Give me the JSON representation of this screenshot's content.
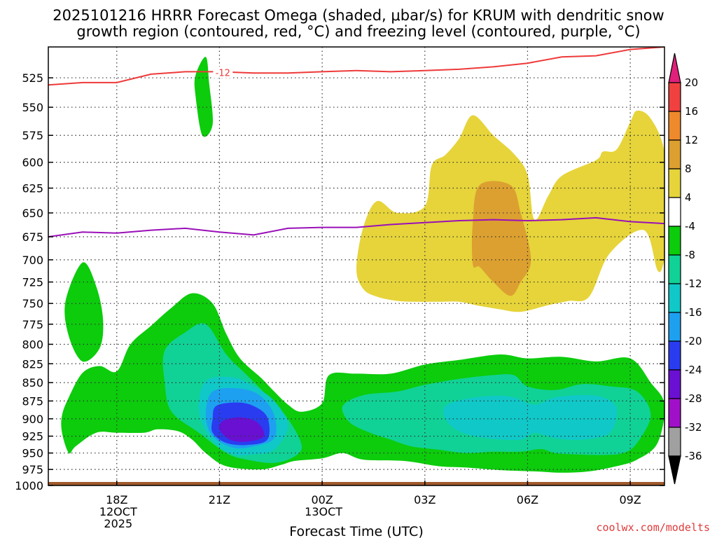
{
  "chart_data": {
    "type": "heatmap",
    "title_line1": "2025101216 HRRR Forecast Omega (shaded, μbar/s) for KRUM with dendritic snow",
    "title_line2": "growth region (contoured, red, °C) and freezing level (contoured, purple, °C)",
    "xlabel": "Forecast Time (UTC)",
    "ylabel": "",
    "credit": "coolwx.com/modelts",
    "x_range_hours": [
      16,
      34
    ],
    "y_range_hpa": [
      1000,
      500
    ],
    "y_ticks": [
      525,
      550,
      575,
      600,
      625,
      650,
      675,
      700,
      725,
      750,
      775,
      800,
      825,
      850,
      875,
      900,
      925,
      950,
      975,
      1000
    ],
    "x_ticks": [
      {
        "hour": 18,
        "lines": [
          "18Z",
          "12OCT",
          "2025"
        ]
      },
      {
        "hour": 21,
        "lines": [
          "21Z"
        ]
      },
      {
        "hour": 24,
        "lines": [
          "00Z",
          "13OCT"
        ]
      },
      {
        "hour": 27,
        "lines": [
          "03Z"
        ]
      },
      {
        "hour": 30,
        "lines": [
          "06Z"
        ]
      },
      {
        "hour": 33,
        "lines": [
          "09Z"
        ]
      }
    ],
    "colorbar": {
      "labels": [
        "20",
        "16",
        "12",
        "8",
        "4",
        "-4",
        "-8",
        "-12",
        "-16",
        "-20",
        "-24",
        "-28",
        "-32",
        "-36"
      ],
      "bins": [
        {
          "range": ">20",
          "color": "#e0207a"
        },
        {
          "range": "16 to 20",
          "color": "#f04040"
        },
        {
          "range": "12 to 16",
          "color": "#ee8a2c"
        },
        {
          "range": "8 to 12",
          "color": "#dca030"
        },
        {
          "range": "4 to 8",
          "color": "#e6d43a"
        },
        {
          "range": "-4 to 4",
          "color": "#ffffff"
        },
        {
          "range": "-8 to -4",
          "color": "#0ccc0c"
        },
        {
          "range": "-12 to -8",
          "color": "#10d296"
        },
        {
          "range": "-16 to -12",
          "color": "#10c8c8"
        },
        {
          "range": "-20 to -16",
          "color": "#1ea0f0"
        },
        {
          "range": "-24 to -20",
          "color": "#2a3cf0"
        },
        {
          "range": "-28 to -24",
          "color": "#6a10d2"
        },
        {
          "range": "-32 to -28",
          "color": "#a010c8"
        },
        {
          "range": "-36 to -32",
          "color": "#a0a0a0"
        },
        {
          "range": "<-36",
          "color": "#000000"
        }
      ]
    },
    "dgz_contour": {
      "label": "-12",
      "color": "#ee3a3a",
      "points": [
        [
          16,
          531
        ],
        [
          17,
          529
        ],
        [
          18,
          529
        ],
        [
          19,
          522
        ],
        [
          20,
          520
        ],
        [
          21,
          520
        ],
        [
          22,
          521
        ],
        [
          23,
          521
        ],
        [
          24,
          520
        ],
        [
          25,
          519
        ],
        [
          26,
          520
        ],
        [
          27,
          519
        ],
        [
          28,
          518
        ],
        [
          29,
          516
        ],
        [
          30,
          513
        ],
        [
          31,
          508
        ],
        [
          32,
          507
        ],
        [
          33,
          502
        ],
        [
          34,
          500
        ]
      ]
    },
    "freezing_level": {
      "color": "#9a10b8",
      "points": [
        [
          16,
          675
        ],
        [
          17,
          670
        ],
        [
          18,
          671
        ],
        [
          19,
          668
        ],
        [
          20,
          666
        ],
        [
          21,
          670
        ],
        [
          22,
          673
        ],
        [
          23,
          666
        ],
        [
          24,
          665
        ],
        [
          25,
          665
        ],
        [
          26,
          662
        ],
        [
          27,
          660
        ],
        [
          28,
          658
        ],
        [
          29,
          657
        ],
        [
          30,
          658
        ],
        [
          31,
          657
        ],
        [
          32,
          655
        ],
        [
          33,
          659
        ],
        [
          34,
          661
        ]
      ]
    },
    "omega_regions": [
      {
        "value_range": "4 to 8",
        "color": "#e6d43a",
        "points": [
          [
            25.0,
            710
          ],
          [
            25.2,
            665
          ],
          [
            25.6,
            638
          ],
          [
            26.2,
            650
          ],
          [
            27.0,
            643
          ],
          [
            27.2,
            603
          ],
          [
            27.6,
            593
          ],
          [
            28.0,
            578
          ],
          [
            28.4,
            557
          ],
          [
            29.0,
            575
          ],
          [
            29.6,
            592
          ],
          [
            30.0,
            612
          ],
          [
            30.2,
            657
          ],
          [
            30.6,
            633
          ],
          [
            31.0,
            613
          ],
          [
            32.0,
            598
          ],
          [
            32.2,
            590
          ],
          [
            32.6,
            588
          ],
          [
            33.0,
            563
          ],
          [
            33.2,
            553
          ],
          [
            33.6,
            560
          ],
          [
            34.0,
            590
          ],
          [
            34.2,
            660
          ],
          [
            34.0,
            700
          ],
          [
            33.8,
            712
          ],
          [
            33.4,
            668
          ],
          [
            32.4,
            693
          ],
          [
            31.8,
            742
          ],
          [
            31.2,
            747
          ],
          [
            30.6,
            752
          ],
          [
            29.8,
            760
          ],
          [
            29.2,
            757
          ],
          [
            28.6,
            753
          ],
          [
            28.0,
            748
          ],
          [
            27.4,
            748
          ],
          [
            26.8,
            748
          ],
          [
            26.2,
            747
          ],
          [
            25.6,
            742
          ],
          [
            25.2,
            733
          ]
        ]
      },
      {
        "value_range": "8 to 12",
        "color": "#dca030",
        "points": [
          [
            28.6,
            622
          ],
          [
            29.5,
            622
          ],
          [
            29.8,
            650
          ],
          [
            30.1,
            700
          ],
          [
            29.8,
            725
          ],
          [
            29.5,
            741
          ],
          [
            29.0,
            725
          ],
          [
            28.6,
            708
          ],
          [
            28.4,
            705
          ],
          [
            28.4,
            660
          ]
        ]
      },
      {
        "value_range": "-8 to -4",
        "color": "#0ccc0c",
        "points": [
          [
            20.6,
            508
          ],
          [
            20.7,
            530
          ],
          [
            20.8,
            565
          ],
          [
            20.5,
            575
          ],
          [
            20.3,
            540
          ],
          [
            20.3,
            523
          ]
        ]
      },
      {
        "value_range": "-8 to -4",
        "color": "#0ccc0c",
        "points": [
          [
            17.0,
            703
          ],
          [
            17.4,
            730
          ],
          [
            17.6,
            770
          ],
          [
            17.5,
            805
          ],
          [
            17.0,
            822
          ],
          [
            16.6,
            790
          ],
          [
            16.5,
            748
          ]
        ]
      },
      {
        "value_range": "-8 to -4",
        "color": "#0ccc0c",
        "points": [
          [
            16.4,
            895
          ],
          [
            16.6,
            870
          ],
          [
            17.0,
            837
          ],
          [
            17.5,
            828
          ],
          [
            18.0,
            835
          ],
          [
            18.4,
            800
          ],
          [
            19.0,
            777
          ],
          [
            19.6,
            755
          ],
          [
            20.2,
            738
          ],
          [
            20.8,
            750
          ],
          [
            21.2,
            787
          ],
          [
            21.6,
            818
          ],
          [
            22.2,
            843
          ],
          [
            22.6,
            862
          ],
          [
            23.0,
            880
          ],
          [
            23.4,
            890
          ],
          [
            24.0,
            878
          ],
          [
            24.2,
            840
          ],
          [
            25.0,
            838
          ],
          [
            26.0,
            838
          ],
          [
            27.0,
            826
          ],
          [
            28.0,
            820
          ],
          [
            29.2,
            813
          ],
          [
            30.0,
            818
          ],
          [
            31.0,
            816
          ],
          [
            32.0,
            822
          ],
          [
            33.0,
            818
          ],
          [
            33.6,
            850
          ],
          [
            34.0,
            880
          ],
          [
            33.8,
            935
          ],
          [
            33.2,
            960
          ],
          [
            32.6,
            970
          ],
          [
            31.8,
            978
          ],
          [
            31.0,
            980
          ],
          [
            30.2,
            978
          ],
          [
            29.2,
            976
          ],
          [
            28.2,
            972
          ],
          [
            27.4,
            970
          ],
          [
            26.4,
            962
          ],
          [
            25.2,
            960
          ],
          [
            24.6,
            950
          ],
          [
            24.0,
            958
          ],
          [
            23.2,
            962
          ],
          [
            22.8,
            968
          ],
          [
            22.2,
            975
          ],
          [
            21.2,
            970
          ],
          [
            20.6,
            950
          ],
          [
            20.2,
            930
          ],
          [
            19.8,
            918
          ],
          [
            19.2,
            915
          ],
          [
            18.8,
            920
          ],
          [
            18.0,
            920
          ],
          [
            17.4,
            920
          ],
          [
            16.8,
            940
          ],
          [
            16.6,
            950
          ],
          [
            16.4,
            920
          ]
        ]
      },
      {
        "value_range": "-12 to -8",
        "color": "#10d296",
        "points": [
          [
            19.4,
            808
          ],
          [
            20.0,
            785
          ],
          [
            20.6,
            775
          ],
          [
            21.2,
            813
          ],
          [
            21.8,
            840
          ],
          [
            22.4,
            868
          ],
          [
            23.0,
            900
          ],
          [
            23.4,
            938
          ],
          [
            23.2,
            955
          ],
          [
            22.6,
            965
          ],
          [
            21.8,
            960
          ],
          [
            21.2,
            950
          ],
          [
            20.4,
            920
          ],
          [
            19.6,
            890
          ],
          [
            19.4,
            850
          ]
        ]
      },
      {
        "value_range": "-12 to -8",
        "color": "#10d296",
        "points": [
          [
            24.6,
            882
          ],
          [
            25.2,
            867
          ],
          [
            26.2,
            862
          ],
          [
            27.0,
            853
          ],
          [
            28.0,
            845
          ],
          [
            29.0,
            840
          ],
          [
            29.6,
            840
          ],
          [
            30.0,
            855
          ],
          [
            30.8,
            860
          ],
          [
            31.6,
            852
          ],
          [
            32.4,
            855
          ],
          [
            33.2,
            862
          ],
          [
            33.6,
            895
          ],
          [
            33.2,
            935
          ],
          [
            32.8,
            950
          ],
          [
            32.2,
            953
          ],
          [
            31.4,
            952
          ],
          [
            30.8,
            950
          ],
          [
            30.4,
            944
          ],
          [
            29.8,
            948
          ],
          [
            29.0,
            948
          ],
          [
            28.2,
            950
          ],
          [
            27.4,
            945
          ],
          [
            26.6,
            940
          ],
          [
            26.0,
            930
          ],
          [
            25.4,
            920
          ],
          [
            24.8,
            905
          ]
        ]
      },
      {
        "value_range": "-16 to -12",
        "color": "#10c8c8",
        "points": [
          [
            20.6,
            848
          ],
          [
            21.4,
            843
          ],
          [
            22.0,
            855
          ],
          [
            22.6,
            875
          ],
          [
            23.0,
            910
          ],
          [
            22.6,
            945
          ],
          [
            22.0,
            952
          ],
          [
            21.4,
            952
          ],
          [
            20.8,
            932
          ],
          [
            20.4,
            890
          ]
        ]
      },
      {
        "value_range": "-16 to -12",
        "color": "#10c8c8",
        "points": [
          [
            27.6,
            882
          ],
          [
            28.2,
            872
          ],
          [
            29.0,
            868
          ],
          [
            29.6,
            870
          ],
          [
            30.2,
            880
          ],
          [
            30.8,
            870
          ],
          [
            31.6,
            867
          ],
          [
            32.2,
            870
          ],
          [
            32.6,
            885
          ],
          [
            32.4,
            920
          ],
          [
            31.6,
            930
          ],
          [
            30.8,
            928
          ],
          [
            30.2,
            920
          ],
          [
            29.8,
            930
          ],
          [
            28.8,
            928
          ],
          [
            28.0,
            918
          ],
          [
            27.6,
            900
          ]
        ]
      },
      {
        "value_range": "-20 to -16",
        "color": "#1ea0f0",
        "points": [
          [
            20.8,
            862
          ],
          [
            21.6,
            858
          ],
          [
            22.2,
            868
          ],
          [
            22.6,
            895
          ],
          [
            22.6,
            928
          ],
          [
            22.0,
            940
          ],
          [
            21.4,
            942
          ],
          [
            20.8,
            925
          ],
          [
            20.6,
            895
          ]
        ]
      },
      {
        "value_range": "-24 to -20",
        "color": "#2a3cf0",
        "points": [
          [
            20.9,
            882
          ],
          [
            21.5,
            877
          ],
          [
            22.0,
            882
          ],
          [
            22.4,
            898
          ],
          [
            22.4,
            930
          ],
          [
            21.8,
            938
          ],
          [
            21.2,
            935
          ],
          [
            20.8,
            920
          ],
          [
            20.8,
            900
          ]
        ]
      },
      {
        "value_range": "-28 to -24",
        "color": "#6a10d2",
        "points": [
          [
            21.1,
            903
          ],
          [
            21.6,
            898
          ],
          [
            22.1,
            905
          ],
          [
            22.3,
            925
          ],
          [
            21.8,
            933
          ],
          [
            21.3,
            930
          ],
          [
            21.0,
            915
          ]
        ]
      }
    ]
  }
}
